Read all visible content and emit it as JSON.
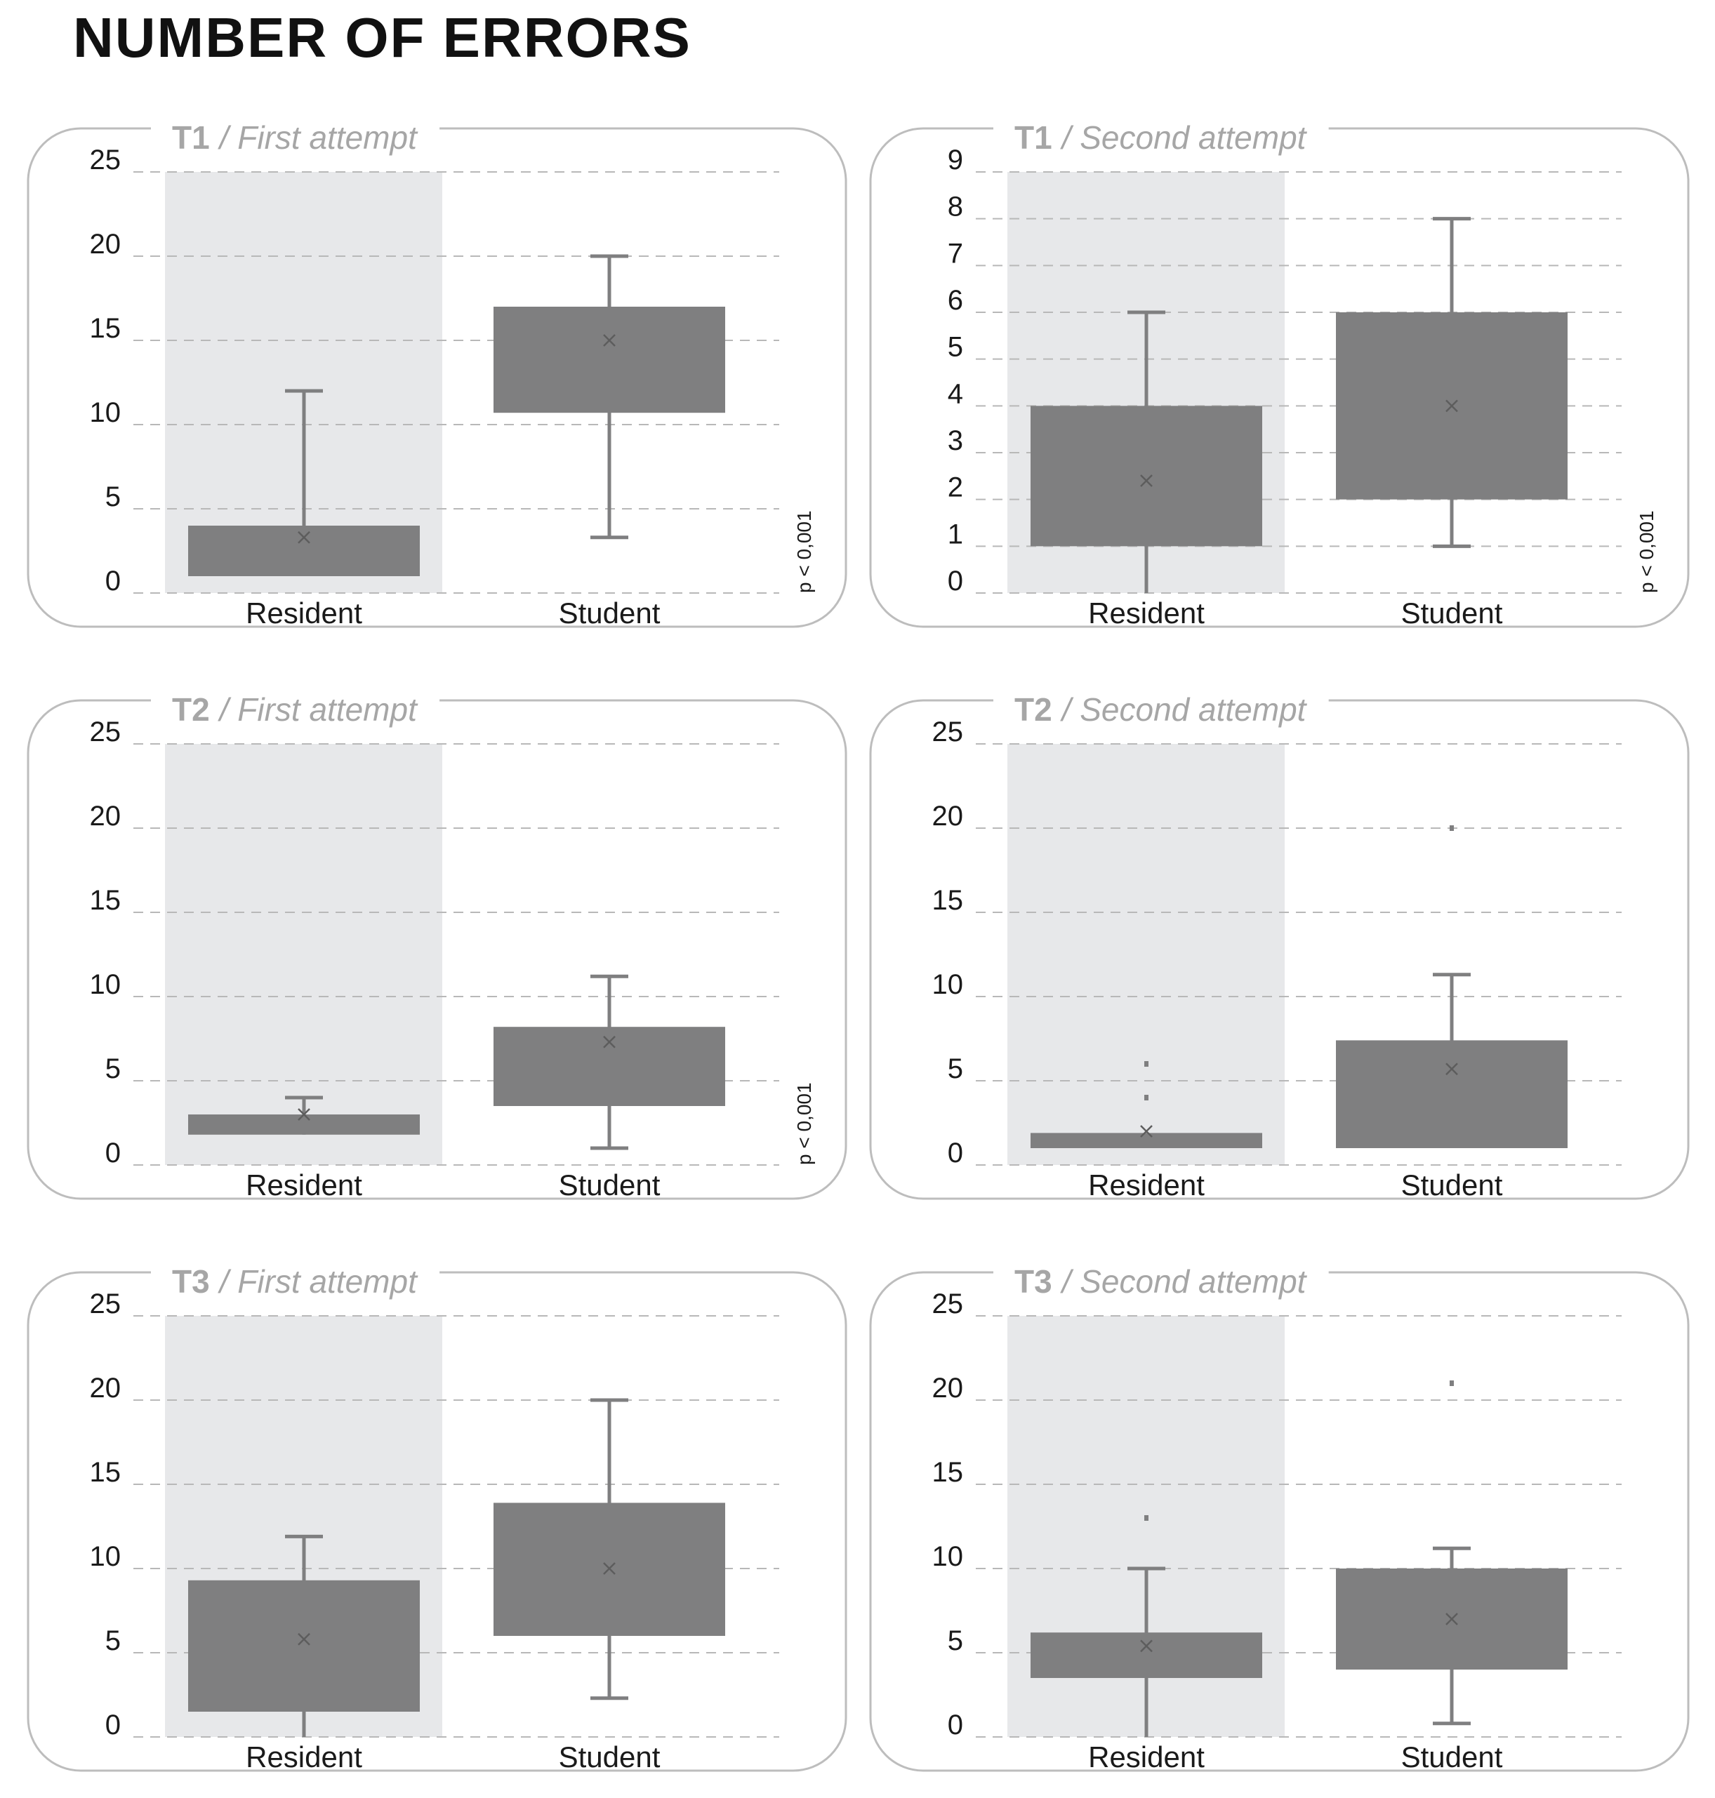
{
  "title": "NUMBER OF ERRORS",
  "colors": {
    "box": "#7f7f80",
    "shade": "#e7e8ea",
    "grid": "#b8b8b8",
    "title": "#a6a6a6"
  },
  "chart_data": [
    {
      "type": "box",
      "title_code": "T1",
      "title_sub": "/ First attempt",
      "categories": [
        "Resident",
        "Student"
      ],
      "ylim": [
        0,
        25
      ],
      "yticks": [
        0,
        5,
        10,
        15,
        20,
        25
      ],
      "grid": true,
      "p_value": "p < 0,001",
      "boxes": [
        {
          "whisker_low": 1,
          "q1": 1,
          "q3": 4,
          "whisker_high": 12,
          "mean": 3.3,
          "outliers": []
        },
        {
          "whisker_low": 3.3,
          "q1": 10.7,
          "q3": 17,
          "whisker_high": 20,
          "mean": 15,
          "outliers": []
        }
      ]
    },
    {
      "type": "box",
      "title_code": "T1",
      "title_sub": "/ Second attempt",
      "categories": [
        "Resident",
        "Student"
      ],
      "ylim": [
        0,
        9
      ],
      "yticks": [
        0,
        1,
        2,
        3,
        4,
        5,
        6,
        7,
        8,
        9
      ],
      "grid": true,
      "p_value": "p < 0,001",
      "boxes": [
        {
          "whisker_low": 0,
          "q1": 1,
          "q3": 4,
          "whisker_high": 6,
          "mean": 2.4,
          "outliers": []
        },
        {
          "whisker_low": 1,
          "q1": 2,
          "q3": 6,
          "whisker_high": 8,
          "mean": 4,
          "outliers": []
        }
      ]
    },
    {
      "type": "box",
      "title_code": "T2",
      "title_sub": "/ First attempt",
      "categories": [
        "Resident",
        "Student"
      ],
      "ylim": [
        0,
        25
      ],
      "yticks": [
        0,
        5,
        10,
        15,
        20,
        25
      ],
      "grid": true,
      "p_value": "p < 0,001",
      "boxes": [
        {
          "whisker_low": 1.8,
          "q1": 1.8,
          "q3": 3,
          "whisker_high": 4,
          "mean": 3,
          "outliers": []
        },
        {
          "whisker_low": 1,
          "q1": 3.5,
          "q3": 8.2,
          "whisker_high": 11.2,
          "mean": 7.3,
          "outliers": []
        }
      ]
    },
    {
      "type": "box",
      "title_code": "T2",
      "title_sub": "/ Second attempt",
      "categories": [
        "Resident",
        "Student"
      ],
      "ylim": [
        0,
        25
      ],
      "yticks": [
        0,
        5,
        10,
        15,
        20,
        25
      ],
      "grid": true,
      "p_value": "",
      "boxes": [
        {
          "whisker_low": 1,
          "q1": 1,
          "q3": 1.9,
          "whisker_high": 1.9,
          "mean": 2,
          "outliers": [
            4,
            6
          ]
        },
        {
          "whisker_low": 1,
          "q1": 1,
          "q3": 7.4,
          "whisker_high": 11.3,
          "mean": 5.7,
          "outliers": [
            20
          ]
        }
      ]
    },
    {
      "type": "box",
      "title_code": "T3",
      "title_sub": "/ First attempt",
      "categories": [
        "Resident",
        "Student"
      ],
      "ylim": [
        0,
        25
      ],
      "yticks": [
        0,
        5,
        10,
        15,
        20,
        25
      ],
      "grid": true,
      "p_value": "",
      "boxes": [
        {
          "whisker_low": 0,
          "q1": 1.5,
          "q3": 9.3,
          "whisker_high": 11.9,
          "mean": 5.8,
          "outliers": []
        },
        {
          "whisker_low": 2.3,
          "q1": 6,
          "q3": 13.9,
          "whisker_high": 20,
          "mean": 10,
          "outliers": []
        }
      ]
    },
    {
      "type": "box",
      "title_code": "T3",
      "title_sub": "/ Second attempt",
      "categories": [
        "Resident",
        "Student"
      ],
      "ylim": [
        0,
        25
      ],
      "yticks": [
        0,
        5,
        10,
        15,
        20,
        25
      ],
      "grid": true,
      "p_value": "",
      "boxes": [
        {
          "whisker_low": 0,
          "q1": 3.5,
          "q3": 6.2,
          "whisker_high": 10,
          "mean": 5.4,
          "outliers": [
            13
          ]
        },
        {
          "whisker_low": 0.8,
          "q1": 4,
          "q3": 10,
          "whisker_high": 11.2,
          "mean": 7,
          "outliers": [
            21
          ]
        }
      ]
    }
  ]
}
